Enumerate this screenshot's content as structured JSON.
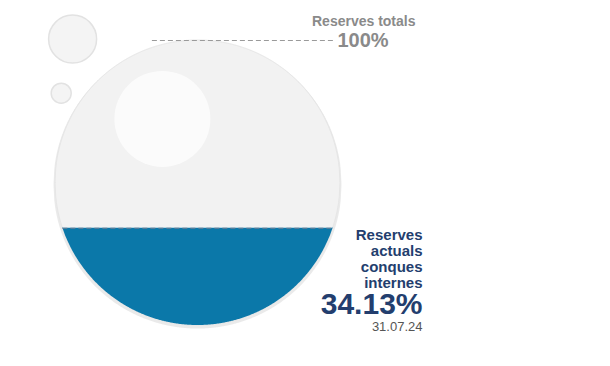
{
  "chart_data": {
    "type": "liquid",
    "categories": [
      "Reserves totals",
      "Reserves actuals conques internes"
    ],
    "values": [
      100,
      34.13
    ],
    "value_labels": [
      "100%",
      "34.13%"
    ],
    "annotations": [
      "31.07.24"
    ],
    "ylim": [
      0,
      100
    ],
    "colors": [
      "#f2f2f2",
      "#0b78a9"
    ],
    "tick_labels": false,
    "data_labels": true
  }
}
